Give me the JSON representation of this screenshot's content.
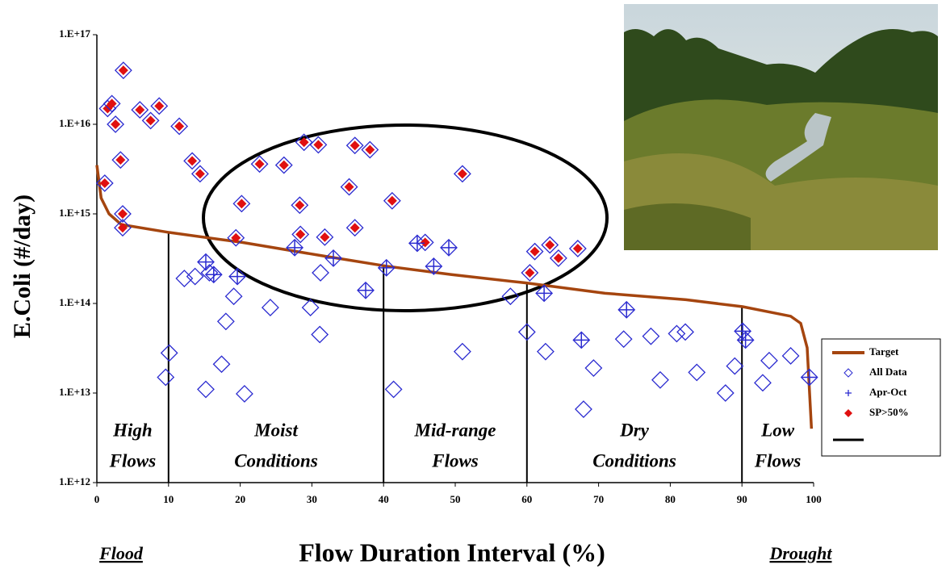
{
  "chart_data": {
    "type": "scatter",
    "y_label": "E.Coli (#/day)",
    "x_label": "Flow Duration Interval (%)",
    "x_left_label": "Flood",
    "x_right_label": "Drought",
    "xlim": [
      0,
      100
    ],
    "xticks": [
      0,
      10,
      20,
      30,
      40,
      50,
      60,
      70,
      80,
      90,
      100
    ],
    "ylim": [
      1000000000000.0,
      1e+17
    ],
    "yticks": [
      {
        "value": 1000000000000.0,
        "label": "1.E+12"
      },
      {
        "value": 10000000000000.0,
        "label": "1.E+13"
      },
      {
        "value": 100000000000000.0,
        "label": "1.E+14"
      },
      {
        "value": 1000000000000000.0,
        "label": "1.E+15"
      },
      {
        "value": 1e+16,
        "label": "1.E+16"
      },
      {
        "value": 1e+17,
        "label": "1.E+17"
      }
    ],
    "y_scale": "log",
    "legend": "right",
    "dividers": [
      10,
      40,
      60,
      90
    ],
    "zones": [
      [
        "High",
        "Flows"
      ],
      [
        "Moist",
        "Conditions"
      ],
      [
        "Mid-range",
        "Flows"
      ],
      [
        "Dry",
        "Conditions"
      ],
      [
        "Low",
        "Flows"
      ]
    ],
    "series": [
      {
        "name": "Target",
        "color": "#a5450f",
        "marker": "line",
        "x": [
          0,
          0.6,
          1.7,
          3.4,
          10.1,
          20.3,
          31.5,
          40.5,
          49.5,
          59.7,
          70.9,
          82.2,
          90.1,
          96.8,
          98.2,
          99.1,
          99.7
        ],
        "y": [
          3500000000000000.0,
          1500000000000000.0,
          1000000000000000.0,
          760000000000000.0,
          620000000000000.0,
          480000000000000.0,
          340000000000000.0,
          260000000000000.0,
          210000000000000.0,
          170000000000000.0,
          130000000000000.0,
          110000000000000.0,
          92000000000000.0,
          72000000000000.0,
          60000000000000.0,
          32000000000000.0,
          4000000000000.0
        ]
      },
      {
        "name": "All Data",
        "color": "#2a2ad0",
        "marker": "diamond",
        "x": [
          10.1,
          9.6,
          12.2,
          13.7,
          15.2,
          15.7,
          16.3,
          15.2,
          17.4,
          18.0,
          19.1,
          19.6,
          20.6,
          24.2,
          27.6,
          29.8,
          31.2,
          31.1,
          33.0,
          37.5,
          40.4,
          41.4,
          44.7,
          47.0,
          49.1,
          51.0,
          57.7,
          60.0,
          62.4,
          62.6,
          67.6,
          67.9,
          69.3,
          73.5,
          73.9,
          77.3,
          78.6,
          80.9,
          82.1,
          83.7,
          87.7,
          89.0,
          90.1,
          90.5,
          92.9,
          93.8,
          96.8,
          99.4
        ],
        "y": [
          28000000000000.0,
          15000000000000.0,
          190000000000000.0,
          200000000000000.0,
          290000000000000.0,
          220000000000000.0,
          210000000000000.0,
          11000000000000.0,
          21000000000000.0,
          63000000000000.0,
          120000000000000.0,
          200000000000000.0,
          9800000000000.0,
          90000000000000.0,
          420000000000000.0,
          90000000000000.0,
          220000000000000.0,
          45000000000000.0,
          320000000000000.0,
          140000000000000.0,
          250000000000000.0,
          11000000000000.0,
          470000000000000.0,
          260000000000000.0,
          420000000000000.0,
          29000000000000.0,
          120000000000000.0,
          48000000000000.0,
          130000000000000.0,
          29000000000000.0,
          39000000000000.0,
          6600000000000.0,
          19000000000000.0,
          40000000000000.0,
          85000000000000.0,
          43000000000000.0,
          14000000000000.0,
          46000000000000.0,
          48000000000000.0,
          17000000000000.0,
          10000000000000.0,
          20000000000000.0,
          49000000000000.0,
          39000000000000.0,
          13000000000000.0,
          23000000000000.0,
          26000000000000.0,
          15000000000000.0
        ]
      },
      {
        "name": "Apr-Oct",
        "color": "#2a2ad0",
        "marker": "plus",
        "x": [
          15.2,
          16.3,
          19.6,
          27.6,
          33.0,
          37.5,
          40.4,
          44.7,
          47.0,
          49.1,
          62.4,
          67.6,
          73.9,
          90.1,
          90.5,
          99.4
        ],
        "y": [
          290000000000000.0,
          210000000000000.0,
          200000000000000.0,
          420000000000000.0,
          320000000000000.0,
          140000000000000.0,
          250000000000000.0,
          470000000000000.0,
          260000000000000.0,
          420000000000000.0,
          130000000000000.0,
          39000000000000.0,
          85000000000000.0,
          49000000000000.0,
          39000000000000.0,
          15000000000000.0
        ]
      },
      {
        "name": "SP>50%",
        "color": "#e01010",
        "marker": "filled-diamond",
        "x": [
          1.1,
          1.5,
          2.1,
          2.6,
          3.3,
          3.6,
          3.6,
          3.7,
          6.0,
          7.5,
          8.7,
          11.5,
          13.3,
          14.4,
          19.4,
          20.2,
          22.7,
          26.1,
          28.3,
          28.4,
          28.9,
          30.9,
          31.8,
          35.2,
          36.0,
          36.0,
          38.1,
          41.2,
          45.8,
          51.0,
          60.4,
          61.1,
          63.2,
          64.4,
          67.1
        ],
        "y": [
          2200000000000000.0,
          1.5e+16,
          1.7e+16,
          1e+16,
          4000000000000000.0,
          1000000000000000.0,
          700000000000000.0,
          4e+16,
          1.45e+16,
          1.1e+16,
          1.6e+16,
          9500000000000000.0,
          3900000000000000.0,
          2800000000000000.0,
          540000000000000.0,
          1300000000000000.0,
          3600000000000000.0,
          3500000000000000.0,
          1250000000000000.0,
          590000000000000.0,
          6300000000000000.0,
          5900000000000000.0,
          550000000000000.0,
          2000000000000000.0,
          5800000000000000.0,
          700000000000000.0,
          5200000000000000.0,
          1400000000000000.0,
          480000000000000.0,
          2800000000000000.0,
          220000000000000.0,
          380000000000000.0,
          450000000000000.0,
          320000000000000.0,
          410000000000000.0
        ]
      }
    ]
  }
}
